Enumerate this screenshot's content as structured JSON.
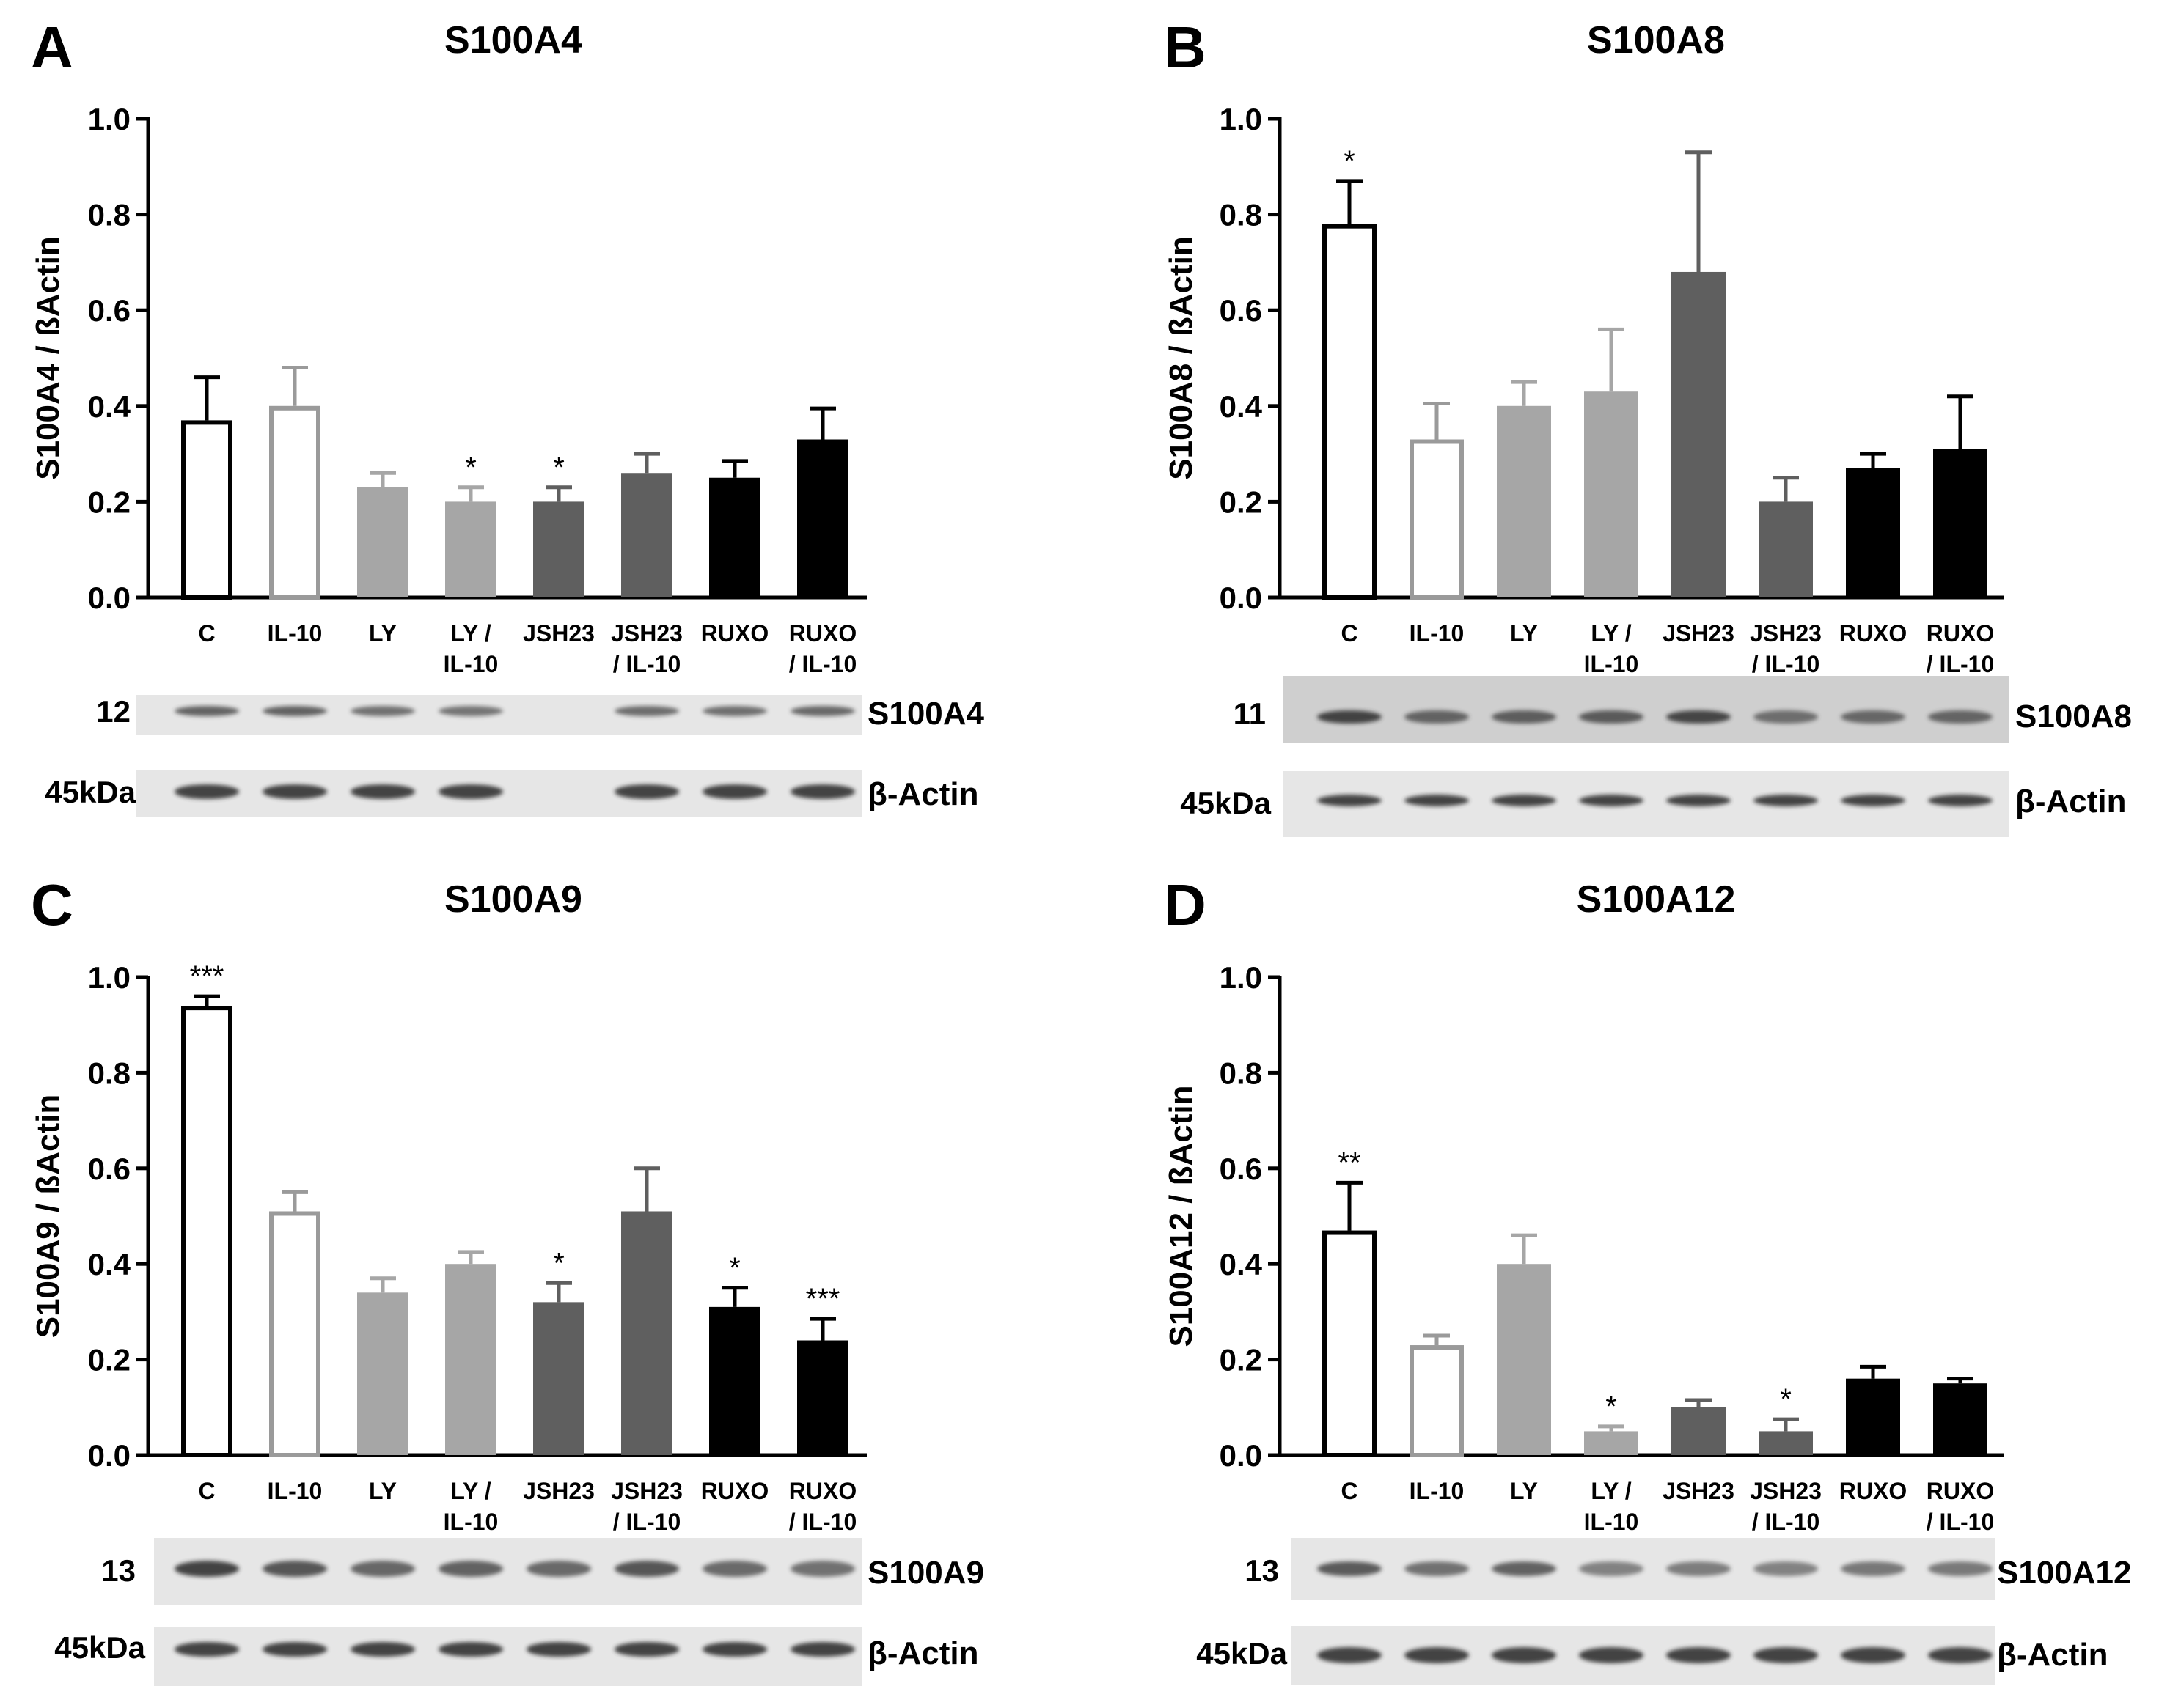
{
  "panels": [
    {
      "letter": "A",
      "title": "S100A4",
      "ylabel": "S100A4 / ßActin",
      "target_mw": "12",
      "actin_mw": "45kDa",
      "target_name": "S100A4",
      "actin_name": "β-Actin"
    },
    {
      "letter": "B",
      "title": "S100A8",
      "ylabel": "S100A8 / ßActin",
      "target_mw": "11",
      "actin_mw": "45kDa",
      "target_name": "S100A8",
      "actin_name": "β-Actin"
    },
    {
      "letter": "C",
      "title": "S100A9",
      "ylabel": "S100A9 / ßActin",
      "target_mw": "13",
      "actin_mw": "45kDa",
      "target_name": "S100A9",
      "actin_name": "β-Actin"
    },
    {
      "letter": "D",
      "title": "S100A12",
      "ylabel": "S100A12 / ßActin",
      "target_mw": "13",
      "actin_mw": "45kDa",
      "target_name": "S100A12",
      "actin_name": "β-Actin"
    }
  ],
  "colors": {
    "C": "#000000",
    "IL-10": "#9a9a9a",
    "LY": "#a6a6a6",
    "LY / IL-10": "#a6a6a6",
    "JSH23": "#5f5f5f",
    "JSH23 / IL-10": "#5f5f5f",
    "RUXO": "#000000",
    "RUXO / IL-10": "#000000",
    "blot_background": "#e6e6e6",
    "blot_background_dark": "#cfcfcf",
    "band": "#3a3a3a"
  },
  "chart_data": [
    {
      "type": "bar",
      "title": "S100A4",
      "ylabel": "S100A4 / ßActin",
      "ylim": [
        0,
        1.0
      ],
      "yticks": [
        "0.0",
        "0.2",
        "0.4",
        "0.6",
        "0.8",
        "1.0"
      ],
      "categories": [
        "C",
        "IL-10",
        "LY",
        "LY /\nIL-10",
        "JSH23",
        "JSH23\n/ IL-10",
        "RUXO",
        "RUXO\n/ IL-10"
      ],
      "fill": [
        "open",
        "open",
        "solid",
        "solid",
        "solid",
        "solid",
        "solid",
        "solid"
      ],
      "values": [
        0.37,
        0.4,
        0.23,
        0.2,
        0.2,
        0.26,
        0.25,
        0.33
      ],
      "errors": [
        0.09,
        0.08,
        0.03,
        0.03,
        0.03,
        0.04,
        0.035,
        0.065
      ],
      "significance": [
        "",
        "",
        "",
        "*",
        "*",
        "",
        "",
        ""
      ],
      "blot_lanes": [
        true,
        true,
        true,
        true,
        false,
        true,
        true,
        true
      ]
    },
    {
      "type": "bar",
      "title": "S100A8",
      "ylabel": "S100A8 / ßActin",
      "ylim": [
        0,
        1.0
      ],
      "yticks": [
        "0.0",
        "0.2",
        "0.4",
        "0.6",
        "0.8",
        "1.0"
      ],
      "categories": [
        "C",
        "IL-10",
        "LY",
        "LY /\nIL-10",
        "JSH23",
        "JSH23\n/ IL-10",
        "RUXO",
        "RUXO\n/ IL-10"
      ],
      "fill": [
        "open",
        "open",
        "solid",
        "solid",
        "solid",
        "solid",
        "solid",
        "solid"
      ],
      "values": [
        0.78,
        0.33,
        0.4,
        0.43,
        0.68,
        0.2,
        0.27,
        0.31
      ],
      "errors": [
        0.09,
        0.075,
        0.05,
        0.13,
        0.25,
        0.05,
        0.03,
        0.11
      ],
      "significance": [
        "*",
        "",
        "",
        "",
        "",
        "",
        "",
        ""
      ],
      "blot_lanes": [
        true,
        true,
        true,
        true,
        true,
        true,
        true,
        true
      ]
    },
    {
      "type": "bar",
      "title": "S100A9",
      "ylabel": "S100A9 / ßActin",
      "ylim": [
        0,
        1.0
      ],
      "yticks": [
        "0.0",
        "0.2",
        "0.4",
        "0.6",
        "0.8",
        "1.0"
      ],
      "categories": [
        "C",
        "IL-10",
        "LY",
        "LY /\nIL-10",
        "JSH23",
        "JSH23\n/ IL-10",
        "RUXO",
        "RUXO\n/ IL-10"
      ],
      "fill": [
        "open",
        "open",
        "solid",
        "solid",
        "solid",
        "solid",
        "solid",
        "solid"
      ],
      "values": [
        0.94,
        0.51,
        0.34,
        0.4,
        0.32,
        0.51,
        0.31,
        0.24
      ],
      "errors": [
        0.02,
        0.04,
        0.03,
        0.025,
        0.04,
        0.09,
        0.04,
        0.045
      ],
      "significance": [
        "***",
        "",
        "",
        "",
        "*",
        "",
        "*",
        "***"
      ],
      "blot_lanes": [
        true,
        true,
        true,
        true,
        true,
        true,
        true,
        true
      ]
    },
    {
      "type": "bar",
      "title": "S100A12",
      "ylabel": "S100A12 / ßActin",
      "ylim": [
        0,
        1.0
      ],
      "yticks": [
        "0.0",
        "0.2",
        "0.4",
        "0.6",
        "0.8",
        "1.0"
      ],
      "categories": [
        "C",
        "IL-10",
        "LY",
        "LY /\nIL-10",
        "JSH23",
        "JSH23\n/ IL-10",
        "RUXO",
        "RUXO\n/ IL-10"
      ],
      "fill": [
        "open",
        "open",
        "solid",
        "solid",
        "solid",
        "solid",
        "solid",
        "solid"
      ],
      "values": [
        0.47,
        0.23,
        0.4,
        0.05,
        0.1,
        0.05,
        0.16,
        0.15
      ],
      "errors": [
        0.1,
        0.02,
        0.06,
        0.01,
        0.015,
        0.025,
        0.025,
        0.01
      ],
      "significance": [
        "**",
        "",
        "",
        "*",
        "",
        "*",
        "",
        ""
      ],
      "blot_lanes": [
        true,
        true,
        true,
        true,
        true,
        true,
        true,
        true
      ]
    }
  ]
}
